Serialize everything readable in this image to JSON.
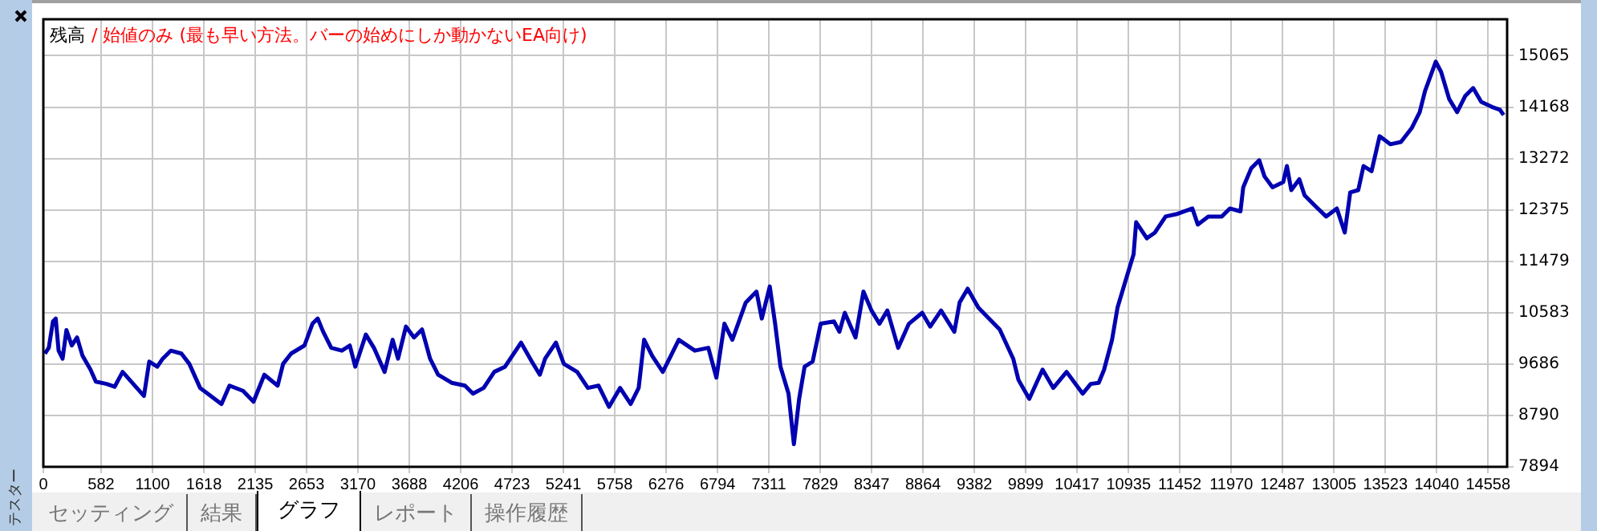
{
  "chart_data": {
    "type": "line",
    "title": "残高",
    "subtitle": "/ 始値のみ (最も早い方法。バーの始めにしか動かないEA向け)",
    "annotations": [
      "テスター",
      "セッティング",
      "結果",
      "グラフ",
      "レポート",
      "操作履歴"
    ],
    "xlim": [
      0,
      14750
    ],
    "xticks": [
      0,
      582,
      1100,
      1618,
      2135,
      2653,
      3170,
      3688,
      4206,
      4723,
      5241,
      5758,
      6276,
      6794,
      7311,
      7829,
      8347,
      8864,
      9382,
      9899,
      10417,
      10935,
      11452,
      11970,
      12487,
      13005,
      13523,
      14040,
      14558
    ],
    "ylim": [
      7894,
      15700
    ],
    "yticks": [
      7894,
      8790,
      9686,
      10583,
      11479,
      12375,
      13272,
      14168,
      15065
    ],
    "grid": true,
    "legend": false,
    "marker": "none",
    "line_style": "solid",
    "series": [
      {
        "color": "#0000b0",
        "x": [
          16,
          55,
          97,
          125,
          154,
          194,
          233,
          286,
          340,
          395,
          475,
          529,
          637,
          718,
          799,
          906,
          1014,
          1067,
          1148,
          1203,
          1284,
          1391,
          1471,
          1580,
          1688,
          1795,
          1876,
          2012,
          2118,
          2227,
          2361,
          2416,
          2497,
          2631,
          2712,
          2765,
          2820,
          2901,
          3008,
          3088,
          3143,
          3250,
          3331,
          3439,
          3520,
          3574,
          3654,
          3735,
          3816,
          3897,
          3978,
          4114,
          4248,
          4329,
          4437,
          4544,
          4652,
          4760,
          4814,
          4922,
          5003,
          5056,
          5165,
          5245,
          5379,
          5487,
          5595,
          5700,
          5812,
          5918,
          5999,
          6054,
          6135,
          6242,
          6323,
          6403,
          6565,
          6701,
          6782,
          6863,
          6943,
          7078,
          7186,
          7240,
          7320,
          7374,
          7428,
          7509,
          7563,
          7616,
          7671,
          7752,
          7833,
          7967,
          8022,
          8076,
          8184,
          8264,
          8345,
          8426,
          8505,
          8614,
          8722,
          8856,
          8937,
          9046,
          9180,
          9233,
          9314,
          9422,
          9530,
          9637,
          9773,
          9826,
          9935,
          10069,
          10177,
          10311,
          10473,
          10554,
          10635,
          10689,
          10769,
          10824,
          10905,
          10986,
          11012,
          11120,
          11201,
          11309,
          11416,
          11578,
          11633,
          11739,
          11875,
          11956,
          12063,
          12091,
          12171,
          12252,
          12305,
          12386,
          12494,
          12531,
          12575,
          12656,
          12709,
          12818,
          12926,
          13034,
          13114,
          13169,
          13250,
          13303,
          13384,
          13465,
          13573,
          13680,
          13788,
          13869,
          13923,
          14031,
          14085,
          14166,
          14246,
          14327,
          14408,
          14489,
          14597,
          14678,
          14715
        ],
        "values": [
          9870,
          9970,
          10430,
          10480,
          9920,
          9780,
          10280,
          10010,
          10150,
          9830,
          9590,
          9380,
          9340,
          9290,
          9550,
          9340,
          9130,
          9730,
          9640,
          9780,
          9920,
          9870,
          9690,
          9270,
          9130,
          8990,
          9310,
          9220,
          9030,
          9500,
          9310,
          9690,
          9870,
          10010,
          10390,
          10480,
          10250,
          9970,
          9920,
          10010,
          9640,
          10200,
          9970,
          9550,
          10110,
          9780,
          10340,
          10150,
          10290,
          9780,
          9500,
          9360,
          9310,
          9170,
          9270,
          9550,
          9640,
          9920,
          10060,
          9730,
          9500,
          9780,
          10060,
          9690,
          9550,
          9270,
          9310,
          8940,
          9270,
          8990,
          9270,
          10110,
          9830,
          9550,
          9830,
          10110,
          9920,
          9970,
          9450,
          10390,
          10110,
          10760,
          10950,
          10480,
          11040,
          10390,
          9640,
          9170,
          8290,
          9080,
          9640,
          9730,
          10390,
          10430,
          10250,
          10580,
          10150,
          10950,
          10620,
          10390,
          10620,
          9970,
          10390,
          10580,
          10340,
          10620,
          10250,
          10760,
          11000,
          10670,
          10480,
          10290,
          9780,
          9410,
          9080,
          9590,
          9270,
          9550,
          9170,
          9340,
          9360,
          9590,
          10110,
          10670,
          11140,
          11600,
          12160,
          11880,
          11980,
          12260,
          12300,
          12400,
          12120,
          12260,
          12260,
          12400,
          12350,
          12770,
          13100,
          13240,
          12960,
          12770,
          12860,
          13140,
          12720,
          12910,
          12630,
          12440,
          12260,
          12400,
          11980,
          12680,
          12720,
          13140,
          13050,
          13660,
          13520,
          13560,
          13800,
          14080,
          14450,
          14960,
          14780,
          14310,
          14080,
          14360,
          14500,
          14260,
          14170,
          14120,
          14030
        ]
      }
    ]
  }
}
